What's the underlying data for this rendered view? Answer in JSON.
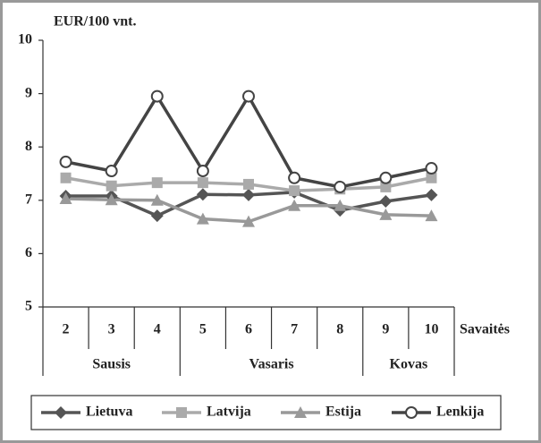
{
  "chart_data": {
    "type": "line",
    "y_label": "EUR/100 vnt.",
    "x_label": "Savaitės",
    "categories": [
      "2",
      "3",
      "4",
      "5",
      "6",
      "7",
      "8",
      "9",
      "10"
    ],
    "groups": [
      {
        "label": "Sausis",
        "span": 3
      },
      {
        "label": "Vasaris",
        "span": 4
      },
      {
        "label": "Kovas",
        "span": 2
      }
    ],
    "series": [
      {
        "name": "Lietuva",
        "color": "#555555",
        "marker": "diamond",
        "values": [
          7.08,
          7.08,
          6.71,
          7.11,
          7.1,
          7.15,
          6.81,
          6.98,
          7.1
        ]
      },
      {
        "name": "Latvija",
        "color": "#aaaaaa",
        "marker": "square",
        "values": [
          7.42,
          7.27,
          7.33,
          7.33,
          7.3,
          7.18,
          7.21,
          7.25,
          7.42
        ]
      },
      {
        "name": "Estija",
        "color": "#999999",
        "marker": "triangle",
        "values": [
          7.03,
          7.01,
          7.0,
          6.65,
          6.6,
          6.9,
          6.9,
          6.73,
          6.71
        ]
      },
      {
        "name": "Lenkija",
        "color": "#444444",
        "marker": "circle",
        "values": [
          7.72,
          7.55,
          8.95,
          7.55,
          8.95,
          7.42,
          7.25,
          7.42,
          7.6
        ]
      }
    ],
    "ylim": [
      5,
      10
    ],
    "yticks": [
      5,
      6,
      7,
      8,
      9,
      10
    ],
    "grid": false
  }
}
